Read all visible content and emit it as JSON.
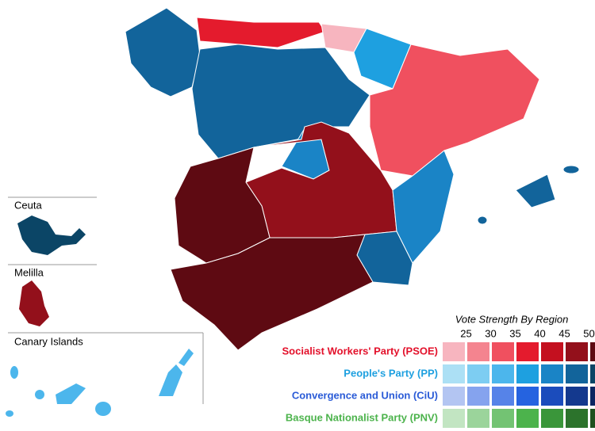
{
  "insets": [
    "Ceuta",
    "Melilla",
    "Canary Islands"
  ],
  "legend": {
    "title": "Vote Strength By Region",
    "scale": [
      25,
      30,
      35,
      40,
      45,
      50
    ],
    "parties": [
      {
        "name": "Socialist Workers' Party (PSOE)",
        "color": "#e3112b",
        "swatches": [
          "#f7b5bf",
          "#f4848f",
          "#f0505f",
          "#e41b2d",
          "#c4101f",
          "#93101b",
          "#5e0a12"
        ]
      },
      {
        "name": "People's Party (PP)",
        "color": "#1ea0e0",
        "swatches": [
          "#ace0f5",
          "#7dcdf2",
          "#4cb6ec",
          "#1ea0e0",
          "#1a84c6",
          "#12649b",
          "#0b4566"
        ]
      },
      {
        "name": "Convergence and Union (CiU)",
        "color": "#2a5bd7",
        "swatches": [
          "#b3c5f2",
          "#85a3ee",
          "#5683e8",
          "#2563e0",
          "#1b4cbc",
          "#14398e",
          "#0c2561"
        ]
      },
      {
        "name": "Basque Nationalist Party (PNV)",
        "color": "#4cb34c",
        "swatches": [
          "#c2e5c2",
          "#9bd49b",
          "#73c373",
          "#4cb34c",
          "#3a963a",
          "#2c732c",
          "#1e501e"
        ]
      }
    ]
  }
}
